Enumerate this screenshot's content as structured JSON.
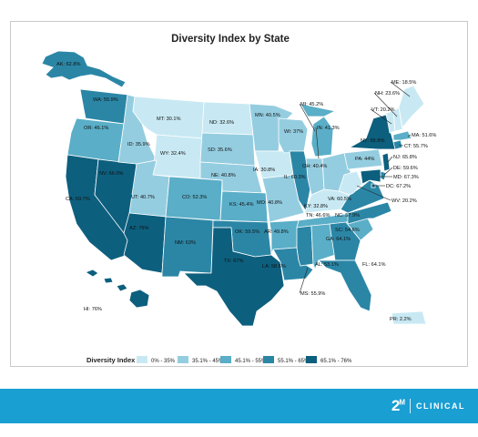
{
  "title": "Diversity Index by State",
  "legend": {
    "title": "Diversity Index",
    "bins": [
      {
        "label": "0% - 35%",
        "color": "#c8e9f3"
      },
      {
        "label": "35.1% - 45%",
        "color": "#95cde0"
      },
      {
        "label": "45.1% - 55%",
        "color": "#5aaec7"
      },
      {
        "label": "55.1% - 65%",
        "color": "#2b86a6"
      },
      {
        "label": "65.1% - 76%",
        "color": "#0d5f7e"
      }
    ]
  },
  "states": [
    {
      "abbr": "AK",
      "label": "AK: 62.8%",
      "value": 62.8
    },
    {
      "abbr": "HI",
      "label": "HI: 76%",
      "value": 76
    },
    {
      "abbr": "WA",
      "label": "WA: 55.9%",
      "value": 55.9
    },
    {
      "abbr": "OR",
      "label": "OR: 46.1%",
      "value": 46.1
    },
    {
      "abbr": "CA",
      "label": "CA: 69.7%",
      "value": 69.7
    },
    {
      "abbr": "NV",
      "label": "NV: 66.0%",
      "value": 66.0
    },
    {
      "abbr": "ID",
      "label": "ID: 35.9%",
      "value": 35.9
    },
    {
      "abbr": "MT",
      "label": "MT: 30.1%",
      "value": 30.1
    },
    {
      "abbr": "WY",
      "label": "WY: 32.4%",
      "value": 32.4
    },
    {
      "abbr": "UT",
      "label": "UT: 40.7%",
      "value": 40.7
    },
    {
      "abbr": "AZ",
      "label": "AZ: 76%",
      "value": 76
    },
    {
      "abbr": "CO",
      "label": "CO: 52.3%",
      "value": 52.3
    },
    {
      "abbr": "NM",
      "label": "NM: 63%",
      "value": 63
    },
    {
      "abbr": "ND",
      "label": "ND: 32.6%",
      "value": 32.6
    },
    {
      "abbr": "SD",
      "label": "SD: 35.6%",
      "value": 35.6
    },
    {
      "abbr": "NE",
      "label": "NE: 40.8%",
      "value": 40.8
    },
    {
      "abbr": "KS",
      "label": "KS: 45.4%",
      "value": 45.4
    },
    {
      "abbr": "OK",
      "label": "OK: 59.5%",
      "value": 59.5
    },
    {
      "abbr": "TX",
      "label": "TX: 67%",
      "value": 67
    },
    {
      "abbr": "MN",
      "label": "MN: 40.5%",
      "value": 40.5
    },
    {
      "abbr": "IA",
      "label": "IA: 30.8%",
      "value": 30.8
    },
    {
      "abbr": "MO",
      "label": "MO: 40.8%",
      "value": 40.8
    },
    {
      "abbr": "AR",
      "label": "AR: 49.8%",
      "value": 49.8
    },
    {
      "abbr": "LA",
      "label": "LA: 58.6%",
      "value": 58.6
    },
    {
      "abbr": "WI",
      "label": "WI: 37%",
      "value": 37
    },
    {
      "abbr": "IL",
      "label": "IL: 60.3%",
      "value": 60.3
    },
    {
      "abbr": "MI",
      "label": "MI: 45.2%",
      "value": 45.2
    },
    {
      "abbr": "IN",
      "label": "IN: 41.3%",
      "value": 41.3
    },
    {
      "abbr": "OH",
      "label": "OH: 40.4%",
      "value": 40.4
    },
    {
      "abbr": "KY",
      "label": "KY: 32.8%",
      "value": 32.8
    },
    {
      "abbr": "TN",
      "label": "TN: 46.6%",
      "value": 46.6
    },
    {
      "abbr": "MS",
      "label": "MS: 55.9%",
      "value": 55.9
    },
    {
      "abbr": "AL",
      "label": "AL: 53.1%",
      "value": 53.1
    },
    {
      "abbr": "GA",
      "label": "GA: 64.1%",
      "value": 64.1
    },
    {
      "abbr": "FL",
      "label": "FL: 64.1%",
      "value": 64.1
    },
    {
      "abbr": "SC",
      "label": "SC: 54.6%",
      "value": 54.6
    },
    {
      "abbr": "NC",
      "label": "NC: 57.9%",
      "value": 57.9
    },
    {
      "abbr": "VA",
      "label": "VA: 60.5%",
      "value": 60.5
    },
    {
      "abbr": "WV",
      "label": "WV: 20.2%",
      "value": 20.2
    },
    {
      "abbr": "PA",
      "label": "PA: 44%",
      "value": 44
    },
    {
      "abbr": "NY",
      "label": "NY: 65.8%",
      "value": 65.8
    },
    {
      "abbr": "NJ",
      "label": "NJ: 65.8%",
      "value": 65.8
    },
    {
      "abbr": "DE",
      "label": "DE: 59.6%",
      "value": 59.6
    },
    {
      "abbr": "MD",
      "label": "MD: 67.3%",
      "value": 67.3
    },
    {
      "abbr": "DC",
      "label": "DC: 67.2%",
      "value": 67.2
    },
    {
      "abbr": "CT",
      "label": "CT: 55.7%",
      "value": 55.7
    },
    {
      "abbr": "MA",
      "label": "MA: 51.6%",
      "value": 51.6
    },
    {
      "abbr": "VT",
      "label": "VT: 20.2%",
      "value": 20.2
    },
    {
      "abbr": "NH",
      "label": "NH: 23.6%",
      "value": 23.6
    },
    {
      "abbr": "ME",
      "label": "ME: 18.5%",
      "value": 18.5
    },
    {
      "abbr": "PR",
      "label": "PR: 2.2%",
      "value": 2.2
    }
  ],
  "brand": {
    "mark": "2",
    "mark_sup": "M",
    "word": "CLINICAL"
  }
}
